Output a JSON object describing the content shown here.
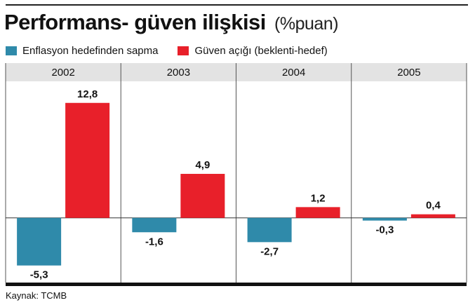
{
  "title": "Performans- güven ilişkisi",
  "title_unit": "(%puan)",
  "source": "Kaynak: TCMB",
  "chart_data": {
    "type": "bar",
    "categories": [
      "2002",
      "2003",
      "2004",
      "2005"
    ],
    "series": [
      {
        "name": "Enflasyon hedefinden sapma",
        "color": "#2f8aaa",
        "values": [
          -5.3,
          -1.6,
          -2.7,
          -0.3
        ],
        "labels": [
          "-5,3",
          "-1,6",
          "-2,7",
          "-0,3"
        ]
      },
      {
        "name": "Güven açığı (beklenti-hedef)",
        "color": "#e8202a",
        "values": [
          12.8,
          4.9,
          1.2,
          0.4
        ],
        "labels": [
          "12,8",
          "4,9",
          "1,2",
          "0,4"
        ]
      }
    ],
    "ylim": [
      -7.2,
      15.2
    ],
    "grid": false,
    "legend": "top-left"
  }
}
